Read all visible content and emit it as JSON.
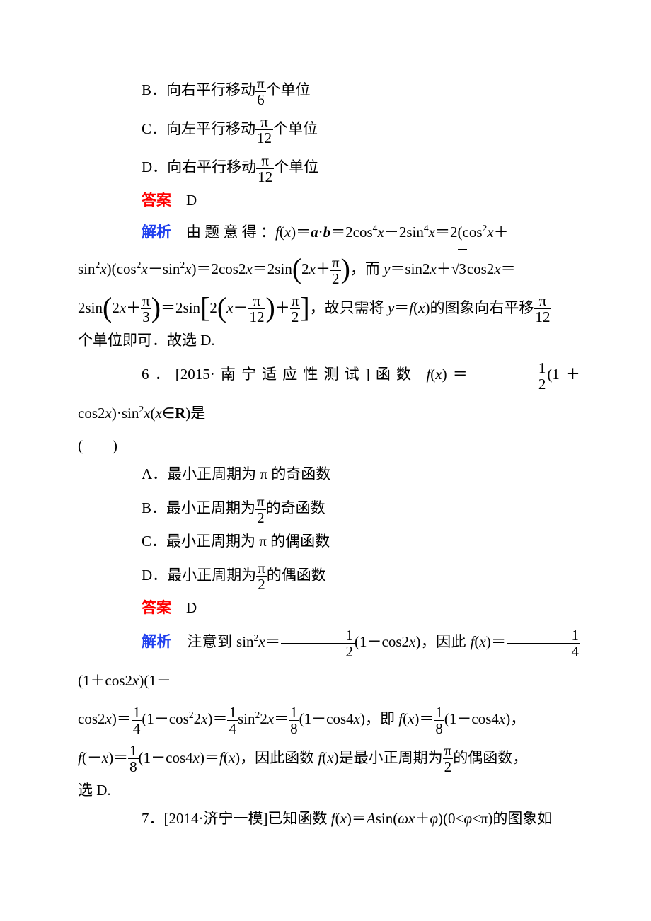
{
  "colors": {
    "answer_label": "#ff0000",
    "explain_label": "#2040ee",
    "body_text": "#000000",
    "background": "#ffffff"
  },
  "fonts": {
    "body_family": "SimSun/Songti serif",
    "math_family": "Times New Roman",
    "body_size_pt": 16
  },
  "labels": {
    "answer": "答案",
    "explain": "解析"
  },
  "optB": "B．向右平行移动",
  "optB_tail": "个单位",
  "optB_frac": {
    "num": "π",
    "den": "6"
  },
  "optC": "C．向左平行移动",
  "optC_tail": "个单位",
  "optC_frac": {
    "num": "π",
    "den": "12"
  },
  "optD": "D．向右平行移动",
  "optD_tail": "个单位",
  "optD_frac": {
    "num": "π",
    "den": "12"
  },
  "ans5": "D",
  "exp5_a": "由 题 意 得 ：",
  "exp5_b": "＝",
  "exp5_c": "＝2cos",
  "exp5_d": "－2sin",
  "exp5_e": "＝2(cos",
  "exp5_f": "＋",
  "exp5_g": "sin",
  "exp5_h": ")(cos",
  "exp5_i": "－sin",
  "exp5_j": ")＝2cos2",
  "exp5_k": "＝2sin",
  "exp5_l": "，而 ",
  "exp5_m": "＝sin2",
  "exp5_n": "＋",
  "exp5_o": "cos2",
  "exp5_p": "＝",
  "exp5_q": "2sin",
  "exp5_r": "＝2sin",
  "exp5_s": "，故只需将 ",
  "exp5_t": "＝",
  "exp5_u": "的图象向右平移",
  "exp5_v": "个单位即可．故选 D.",
  "frac_pi2": {
    "num": "π",
    "den": "2"
  },
  "frac_pi3": {
    "num": "π",
    "den": "3"
  },
  "frac_pi12": {
    "num": "π",
    "den": "12"
  },
  "sqrt3": "3",
  "q6_head": "6．[2015·南宁适应性测试]函数 ",
  "q6_a": "＝",
  "q6_b": "(1＋cos2",
  "q6_c": ")·sin",
  "q6_d": "∈",
  "q6_e": "是",
  "q6_paren": "(　　)",
  "q6_frac12": {
    "num": "1",
    "den": "2"
  },
  "q6A": "A．最小正周期为 π 的奇函数",
  "q6B": "B．最小正周期为",
  "q6B_tail": "的奇函数",
  "q6C": "C．最小正周期为 π 的偶函数",
  "q6D": "D．最小正周期为",
  "q6D_tail": "的偶函数",
  "ans6": "D",
  "exp6_a": "注意到 sin",
  "exp6_b": "＝",
  "exp6_c": "(1－cos2",
  "exp6_d": ")，因此 ",
  "exp6_e": "＝",
  "exp6_f": "(1＋cos2",
  "exp6_g": ")(1－",
  "exp6_h": "cos2",
  "exp6_i": ")＝",
  "exp6_j": "(1－cos",
  "exp6_k": "2",
  "exp6_l": ")＝",
  "exp6_m": "sin",
  "exp6_n": "2",
  "exp6_o": "＝",
  "exp6_p": "(1－cos4",
  "exp6_q": ")，即 ",
  "exp6_r": "＝",
  "exp6_s": "(1－cos4",
  "exp6_t": ")，",
  "exp6_u": "(－",
  "exp6_v": ")＝",
  "exp6_w": "(1－cos4",
  "exp6_x": ")＝",
  "exp6_y": "，因此函数 ",
  "exp6_z": "是最小正周期为",
  "exp6_zz": "的偶函数，",
  "exp6_end": "选 D.",
  "frac14": {
    "num": "1",
    "den": "4"
  },
  "frac18": {
    "num": "1",
    "den": "8"
  },
  "q7_head": "7．[2014·济宁一模]已知函数 ",
  "q7_a": "＝",
  "q7_b": "sin(",
  "q7_c": "＋",
  "q7_d": ")(0<",
  "q7_e": "<π)的图象如"
}
